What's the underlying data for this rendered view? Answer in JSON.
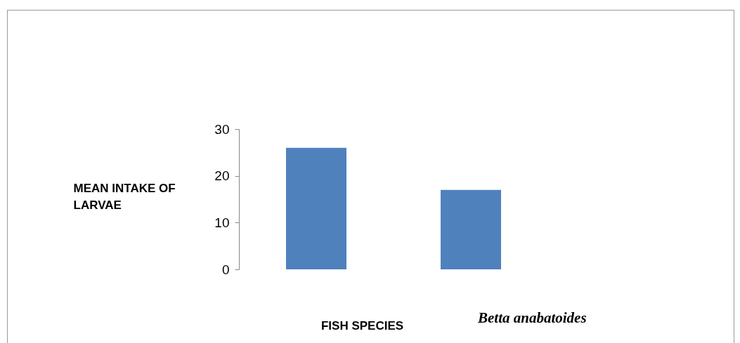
{
  "chart_data": {
    "type": "bar",
    "xlabel": "FISH SPECIES",
    "ylabel": "MEAN INTAKE OF LARVAE",
    "categories": [
      null,
      null
    ],
    "values": [
      26,
      17
    ],
    "color": "#4f81bd",
    "ylim": [
      0,
      30
    ],
    "yticks": [
      0,
      10,
      20,
      30
    ],
    "grid": false,
    "annotations": [
      "Betta anabatoides"
    ]
  }
}
